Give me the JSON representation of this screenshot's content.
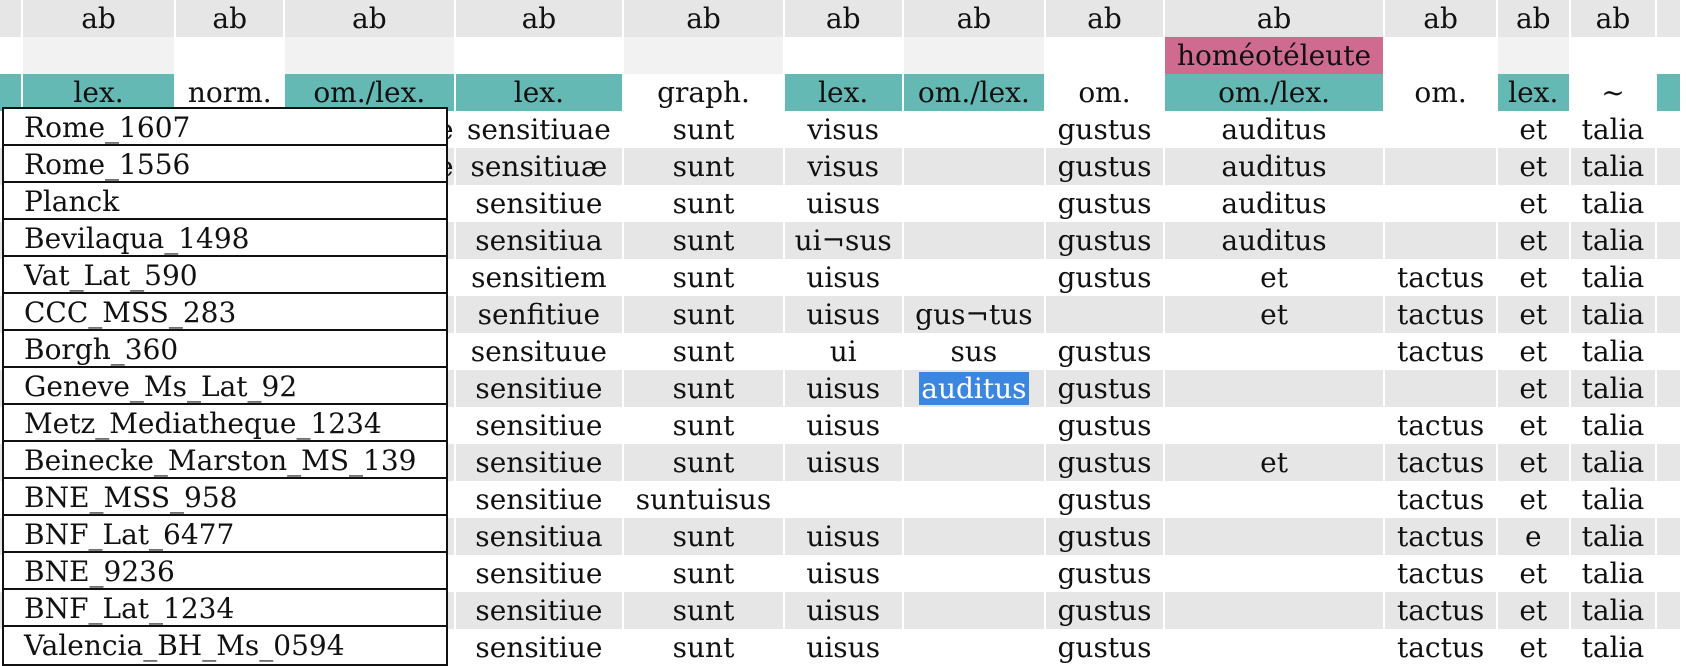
{
  "header_label": "ab",
  "homeoteleute": "homéotéleute",
  "types": [
    "",
    "lex.",
    "norm.",
    "om./lex.",
    "lex.",
    "graph.",
    "lex.",
    "om./lex.",
    "om.",
    "om./lex.",
    "om.",
    "lex.",
    "~",
    ""
  ],
  "witnesses": [
    "Rome_1607",
    "Rome_1556",
    "Planck",
    "Bevilaqua_1498",
    "Vat_Lat_590",
    "CCC_MSS_283",
    "Borgh_360",
    "Geneve_Ms_Lat_92",
    "Metz_Mediatheque_1234",
    "Beinecke_Marston_MS_139",
    "BNE_MSS_958",
    "BNF_Lat_6477",
    "BNE_9236",
    "BNF_Lat_1234",
    "Valencia_BH_Ms_0594"
  ],
  "partial_col3": [
    "e",
    "e",
    "",
    "",
    "",
    "",
    "",
    "",
    "",
    "",
    "",
    "",
    "",
    "",
    ""
  ],
  "rows": [
    [
      "sensitiuae",
      "sunt",
      "visus",
      "",
      "gustus",
      "auditus",
      "",
      "et",
      "talia"
    ],
    [
      "sensitiuæ",
      "sunt",
      "visus",
      "",
      "gustus",
      "auditus",
      "",
      "et",
      "talia"
    ],
    [
      "sensitiue",
      "sunt",
      "uisus",
      "",
      "gustus",
      "auditus",
      "",
      "et",
      "talia"
    ],
    [
      "sensitiua",
      "sunt",
      "ui¬sus",
      "",
      "gustus",
      "auditus",
      "",
      "et",
      "talia"
    ],
    [
      "sensitiem",
      "sunt",
      "uisus",
      "",
      "gustus",
      "et",
      "tactus",
      "et",
      "talia"
    ],
    [
      "senfitiue",
      "sunt",
      "uisus",
      "gus¬tus",
      "",
      "et",
      "tactus",
      "et",
      "talia"
    ],
    [
      "sensituue",
      "sunt",
      "ui",
      "sus",
      "gustus",
      "",
      "tactus",
      "et",
      "talia"
    ],
    [
      "sensitiue",
      "sunt",
      "uisus",
      "auditus",
      "gustus",
      "",
      "",
      "et",
      "talia"
    ],
    [
      "sensitiue",
      "sunt",
      "uisus",
      "",
      "gustus",
      "",
      "tactus",
      "et",
      "talia"
    ],
    [
      "sensitiue",
      "sunt",
      "uisus",
      "",
      "gustus",
      "et",
      "tactus",
      "et",
      "talia"
    ],
    [
      "sensitiue",
      "suntuisus",
      "",
      "",
      "gustus",
      "",
      "tactus",
      "et",
      "talia"
    ],
    [
      "sensitiua",
      "sunt",
      "uisus",
      "",
      "gustus",
      "",
      "tactus",
      "e",
      "talia"
    ],
    [
      "sensitiue",
      "sunt",
      "uisus",
      "",
      "gustus",
      "",
      "tactus",
      "et",
      "talia"
    ],
    [
      "sensitiue",
      "sunt",
      "uisus",
      "",
      "gustus",
      "",
      "tactus",
      "et",
      "talia"
    ],
    [
      "sensitiue",
      "sunt",
      "uisus",
      "",
      "gustus",
      "",
      "tactus",
      "et",
      "talia"
    ]
  ],
  "selected": {
    "row": 7,
    "col": 3
  },
  "colors": {
    "lex": "#64b9b4",
    "pink": "#cf6b8f",
    "selection": "#3b86e0",
    "stripe": "#e6e6e6"
  }
}
